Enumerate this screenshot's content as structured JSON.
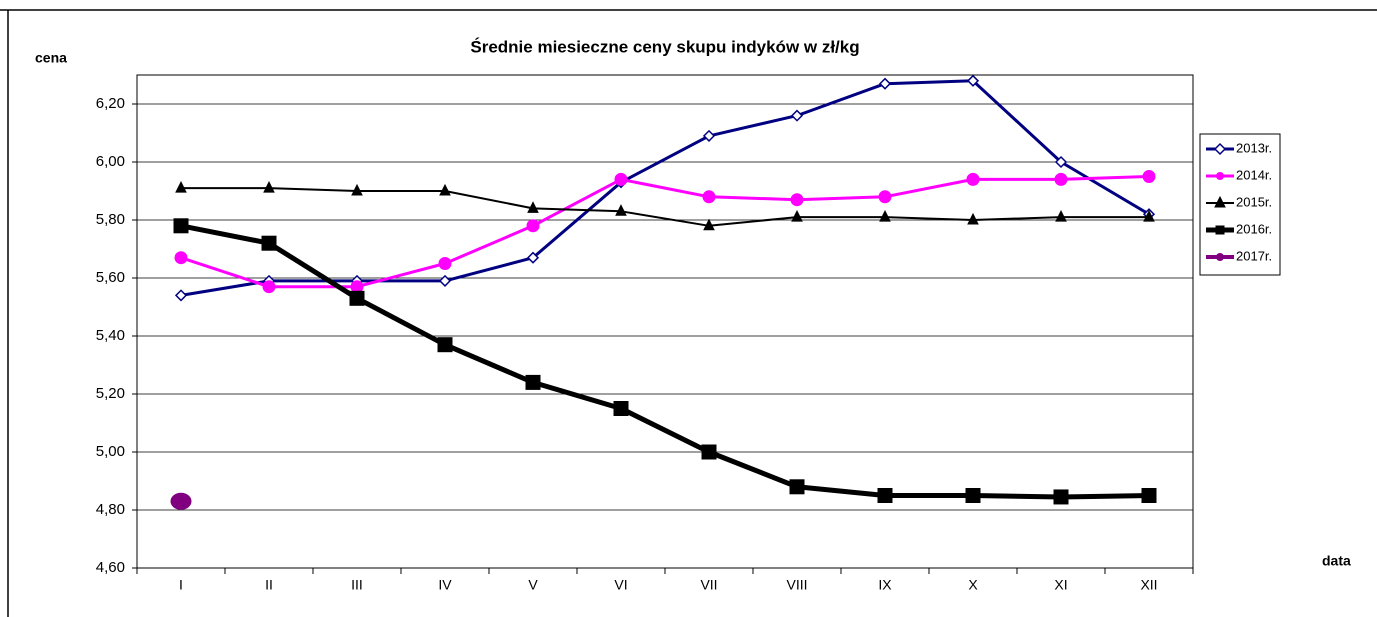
{
  "chart_data": {
    "type": "line",
    "title": "Średnie miesieczne ceny skupu indyków w zł/kg",
    "y_label": "cena",
    "x_label": "data",
    "categories": [
      "I",
      "II",
      "III",
      "IV",
      "V",
      "VI",
      "VII",
      "VIII",
      "IX",
      "X",
      "XI",
      "XII"
    ],
    "ylim": [
      4.6,
      6.3
    ],
    "yticks": [
      {
        "value": 4.6,
        "label": "4,60"
      },
      {
        "value": 4.8,
        "label": "4,80"
      },
      {
        "value": 5.0,
        "label": "5,00"
      },
      {
        "value": 5.2,
        "label": "5,20"
      },
      {
        "value": 5.4,
        "label": "5,40"
      },
      {
        "value": 5.6,
        "label": "5,60"
      },
      {
        "value": 5.8,
        "label": "5,80"
      },
      {
        "value": 6.0,
        "label": "6,00"
      },
      {
        "value": 6.2,
        "label": "6,20"
      }
    ],
    "grid": true,
    "legend": "right",
    "series": [
      {
        "name": "2013r.",
        "color": "#000080",
        "marker": "diamond",
        "linewidth": 3,
        "values": [
          5.54,
          5.59,
          5.59,
          5.59,
          5.67,
          5.93,
          6.09,
          6.16,
          6.27,
          6.28,
          6.0,
          5.82
        ]
      },
      {
        "name": "2014r.",
        "color": "#ff00ff",
        "marker": "circle",
        "linewidth": 3,
        "values": [
          5.67,
          5.57,
          5.57,
          5.65,
          5.78,
          5.94,
          5.88,
          5.87,
          5.88,
          5.94,
          5.94,
          5.95
        ]
      },
      {
        "name": "2015r.",
        "color": "#000000",
        "marker": "triangle",
        "linewidth": 2,
        "values": [
          5.91,
          5.91,
          5.9,
          5.9,
          5.84,
          5.83,
          5.78,
          5.81,
          5.81,
          5.8,
          5.81,
          5.81
        ]
      },
      {
        "name": "2016r.",
        "color": "#000000",
        "marker": "square",
        "linewidth": 5,
        "values": [
          5.78,
          5.72,
          5.53,
          5.37,
          5.24,
          5.15,
          5.0,
          4.88,
          4.85,
          4.85,
          4.845,
          4.85
        ]
      },
      {
        "name": "2017r.",
        "color": "#800080",
        "marker": "bigcircle",
        "linewidth": 4,
        "values": [
          4.83,
          null,
          null,
          null,
          null,
          null,
          null,
          null,
          null,
          null,
          null,
          null
        ]
      }
    ]
  }
}
